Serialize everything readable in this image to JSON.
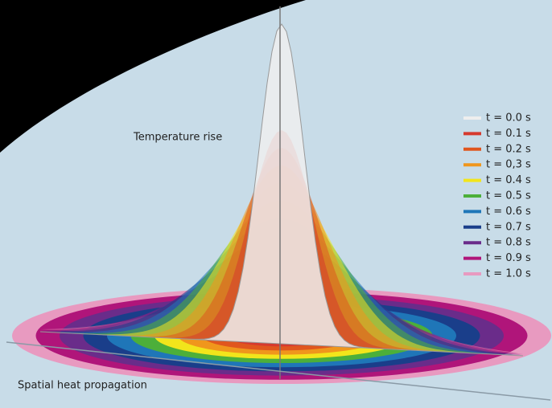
{
  "axis_labels": {
    "vertical": "Temperature rise",
    "horizontal": "Spatial heat propagation"
  },
  "legend": [
    {
      "name": "t = 0.0 s",
      "color": "#eeeeee"
    },
    {
      "name": "t = 0.1 s",
      "color": "#d63a2e"
    },
    {
      "name": "t = 0.2 s",
      "color": "#e0561e"
    },
    {
      "name": "t = 0,3 s",
      "color": "#f0961c"
    },
    {
      "name": "t = 0.4 s",
      "color": "#f2e51b"
    },
    {
      "name": "t = 0.5 s",
      "color": "#4caf3a"
    },
    {
      "name": "t = 0.6 s",
      "color": "#1f76b8"
    },
    {
      "name": "t = 0.7 s",
      "color": "#1a3e8a"
    },
    {
      "name": "t = 0.8 s",
      "color": "#6a2c8a"
    },
    {
      "name": "t = 0.9 s",
      "color": "#b0157a"
    },
    {
      "name": "t = 1.0 s",
      "color": "#e89ac0"
    }
  ]
}
